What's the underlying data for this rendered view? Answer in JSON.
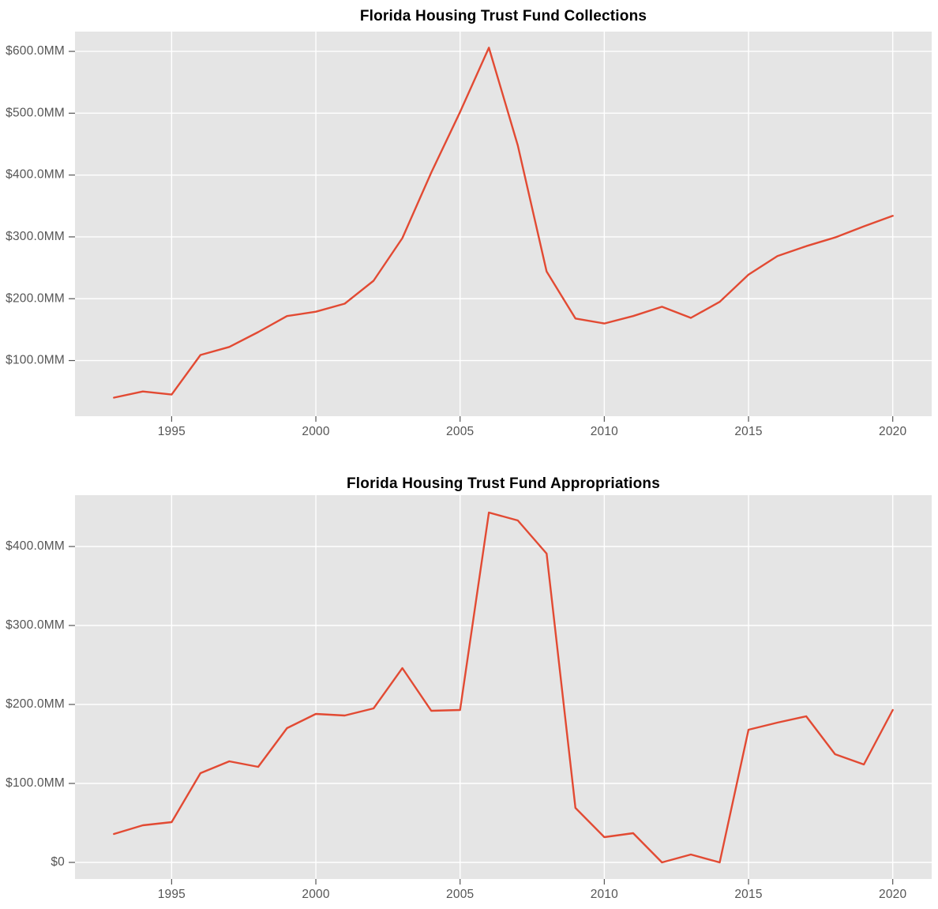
{
  "figure": {
    "background_color": "#ffffff",
    "plot_background_color": "#e5e5e5",
    "gridline_color": "#ffffff",
    "tick_color": "#555555",
    "line_color": "#e24a33",
    "title_color": "#000000"
  },
  "chart_data": [
    {
      "type": "line",
      "title": "Florida Housing Trust Fund Collections",
      "series_name": "Collections ($MM)",
      "x": [
        1993,
        1994,
        1995,
        1996,
        1997,
        1998,
        1999,
        2000,
        2001,
        2002,
        2003,
        2004,
        2005,
        2006,
        2007,
        2008,
        2009,
        2010,
        2011,
        2012,
        2013,
        2014,
        2015,
        2016,
        2017,
        2018,
        2019,
        2020
      ],
      "values": [
        40,
        50,
        45,
        109,
        122,
        146,
        172,
        179,
        192,
        229,
        298,
        404,
        502,
        606,
        448,
        244,
        168,
        160,
        172,
        187,
        169,
        195,
        239,
        269,
        285,
        299,
        317,
        334
      ],
      "xlabel": "",
      "ylabel": "",
      "xlim": [
        1991.65,
        2021.35
      ],
      "ylim": [
        10,
        632
      ],
      "grid": true,
      "legend": "none",
      "xticks": [
        {
          "value": 1995,
          "label": "1995"
        },
        {
          "value": 2000,
          "label": "2000"
        },
        {
          "value": 2005,
          "label": "2005"
        },
        {
          "value": 2010,
          "label": "2010"
        },
        {
          "value": 2015,
          "label": "2015"
        },
        {
          "value": 2020,
          "label": "2020"
        }
      ],
      "yticks": [
        {
          "value": 100,
          "label": "$100.0MM"
        },
        {
          "value": 200,
          "label": "$200.0MM"
        },
        {
          "value": 300,
          "label": "$300.0MM"
        },
        {
          "value": 400,
          "label": "$400.0MM"
        },
        {
          "value": 500,
          "label": "$500.0MM"
        },
        {
          "value": 600,
          "label": "$600.0MM"
        }
      ]
    },
    {
      "type": "line",
      "title": "Florida Housing Trust Fund Appropriations",
      "series_name": "Appropriations ($MM)",
      "x": [
        1993,
        1994,
        1995,
        1996,
        1997,
        1998,
        1999,
        2000,
        2001,
        2002,
        2003,
        2004,
        2005,
        2006,
        2007,
        2008,
        2009,
        2010,
        2011,
        2012,
        2013,
        2014,
        2015,
        2016,
        2017,
        2018,
        2019,
        2020
      ],
      "values": [
        36,
        47,
        51,
        113,
        128,
        121,
        170,
        188,
        186,
        195,
        246,
        192,
        193,
        443,
        433,
        391,
        69,
        32,
        37,
        0,
        10,
        0,
        168,
        177,
        185,
        137,
        124,
        193
      ],
      "xlabel": "",
      "ylabel": "",
      "xlim": [
        1991.65,
        2021.35
      ],
      "ylim": [
        -21,
        465
      ],
      "grid": true,
      "legend": "none",
      "xticks": [
        {
          "value": 1995,
          "label": "1995"
        },
        {
          "value": 2000,
          "label": "2000"
        },
        {
          "value": 2005,
          "label": "2005"
        },
        {
          "value": 2010,
          "label": "2010"
        },
        {
          "value": 2015,
          "label": "2015"
        },
        {
          "value": 2020,
          "label": "2020"
        }
      ],
      "yticks": [
        {
          "value": 0,
          "label": "$0"
        },
        {
          "value": 100,
          "label": "$100.0MM"
        },
        {
          "value": 200,
          "label": "$200.0MM"
        },
        {
          "value": 300,
          "label": "$300.0MM"
        },
        {
          "value": 400,
          "label": "$400.0MM"
        }
      ]
    }
  ]
}
